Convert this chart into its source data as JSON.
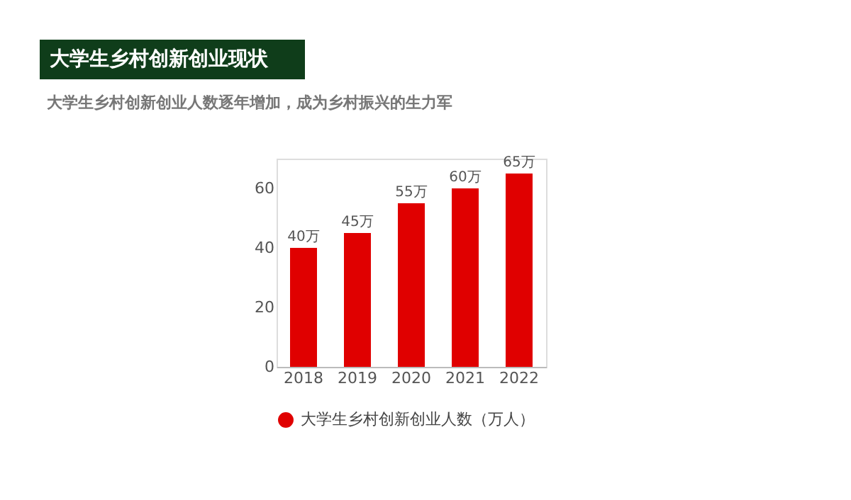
{
  "chart_data": {
    "type": "bar",
    "title": "大学生乡村创新创业现状",
    "subtitle": "大学生乡村创新创业人数逐年增加，成为乡村振兴的生力军",
    "categories": [
      "2018",
      "2019",
      "2020",
      "2021",
      "2022"
    ],
    "series": [
      {
        "name": "大学生乡村创新创业人数（万人）",
        "color": "#e00000",
        "values": [
          40,
          45,
          55,
          60,
          65
        ],
        "value_labels": [
          "40万",
          "45万",
          "55万",
          "60万",
          "65万"
        ]
      }
    ],
    "ylim": [
      0,
      70
    ],
    "yticks": [
      0,
      20,
      40,
      60
    ],
    "grid": false,
    "legend": "bottom"
  }
}
